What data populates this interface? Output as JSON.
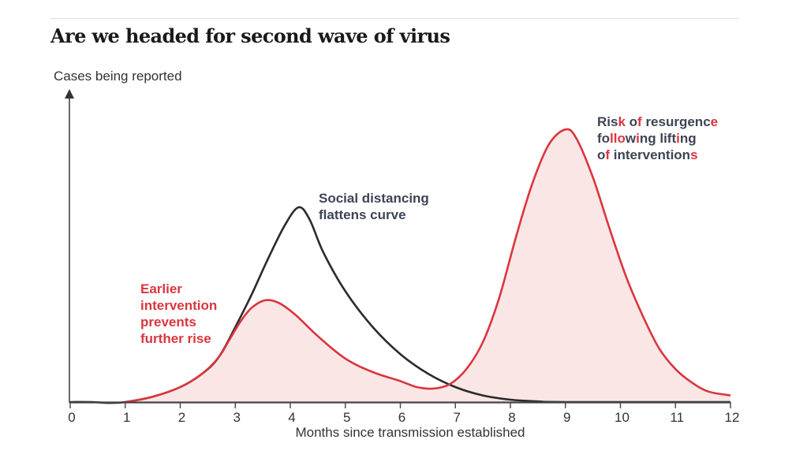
{
  "header": {
    "title": "Are we headed for second wave of virus"
  },
  "colors": {
    "black_curve": "#2b2b2b",
    "red_curve": "#d9363e",
    "red_fill": "#fbe6e6",
    "axis": "#444444",
    "annotation_dark": "#3d4455",
    "annotation_red": "#d9363e"
  },
  "chart_data": {
    "type": "line",
    "title": "Are we headed for second wave of virus",
    "xlabel": "Months since transmission established",
    "ylabel": "Cases being reported",
    "xlim": [
      0,
      12
    ],
    "ylim": [
      0,
      100
    ],
    "x_ticks": [
      0,
      1,
      2,
      3,
      4,
      5,
      6,
      7,
      8,
      9,
      10,
      11,
      12
    ],
    "x_tick_labels": [
      "0",
      "1",
      "2",
      "3",
      "4",
      "5",
      "6",
      "7",
      "8",
      "9",
      "10",
      "11",
      "12"
    ],
    "y_ticks_shown": false,
    "grid": false,
    "series": [
      {
        "name": "Social distancing flattens curve",
        "style": "black line, no fill",
        "points": [
          [
            0,
            0
          ],
          [
            0.4,
            0
          ],
          [
            0.7,
            -0.3
          ],
          [
            1.0,
            0
          ],
          [
            1.5,
            1.8
          ],
          [
            2.0,
            5
          ],
          [
            2.4,
            9.5
          ],
          [
            2.7,
            15
          ],
          [
            3.0,
            25
          ],
          [
            3.3,
            36
          ],
          [
            3.6,
            48
          ],
          [
            3.9,
            59
          ],
          [
            4.15,
            65
          ],
          [
            4.35,
            61
          ],
          [
            4.6,
            50
          ],
          [
            5.0,
            37
          ],
          [
            5.5,
            25
          ],
          [
            6.0,
            16
          ],
          [
            6.5,
            9.5
          ],
          [
            7.0,
            5
          ],
          [
            7.5,
            2.2
          ],
          [
            8.0,
            0.8
          ],
          [
            8.5,
            0.2
          ],
          [
            9.0,
            0
          ],
          [
            12,
            0
          ]
        ]
      },
      {
        "name": "Earlier intervention prevents further rise / Risk of resurgence following lifting of interventions",
        "style": "red line with light pink fill",
        "points": [
          [
            1.0,
            0
          ],
          [
            1.5,
            1.8
          ],
          [
            2.0,
            5
          ],
          [
            2.4,
            9.5
          ],
          [
            2.7,
            15
          ],
          [
            2.9,
            21
          ],
          [
            3.1,
            27
          ],
          [
            3.3,
            31.5
          ],
          [
            3.55,
            34
          ],
          [
            3.8,
            33
          ],
          [
            4.1,
            29
          ],
          [
            4.5,
            22
          ],
          [
            5.0,
            14.5
          ],
          [
            5.5,
            10
          ],
          [
            6.0,
            7
          ],
          [
            6.3,
            5
          ],
          [
            6.6,
            4.5
          ],
          [
            6.9,
            6
          ],
          [
            7.2,
            11
          ],
          [
            7.5,
            20
          ],
          [
            7.8,
            35
          ],
          [
            8.1,
            55
          ],
          [
            8.4,
            73
          ],
          [
            8.7,
            86
          ],
          [
            9.0,
            91
          ],
          [
            9.2,
            88
          ],
          [
            9.5,
            75
          ],
          [
            9.8,
            58
          ],
          [
            10.1,
            42
          ],
          [
            10.4,
            29
          ],
          [
            10.7,
            18
          ],
          [
            11.0,
            11
          ],
          [
            11.3,
            6.5
          ],
          [
            11.6,
            3.5
          ],
          [
            12.0,
            2.2
          ]
        ]
      }
    ],
    "annotations": [
      {
        "id": "social_distancing",
        "lines": [
          "Social distancing",
          "flattens curve"
        ],
        "color": "dark",
        "near": "black curve peak (~4 months)"
      },
      {
        "id": "earlier_intervention",
        "lines": [
          "Earlier",
          "intervention",
          "prevents",
          "further rise"
        ],
        "color": "red",
        "near": "first red peak (~3.5 months)"
      },
      {
        "id": "resurgence",
        "lines": [
          "Risk of resurgence",
          "following lifting",
          "of interventions"
        ],
        "color": "dark with red letter highlights",
        "highlighted_letters": {
          "line1": "Risk of resurgence — red: 'k', 'f', final 'e'",
          "line2": "following lifting — red: 'll' pair 'o', 'w'... partial red letters",
          "line3": "of interventions — red: 'f', final 's'"
        },
        "near": "second red peak (~9 months)"
      }
    ]
  },
  "annotation_text": {
    "social": {
      "line1": "Social distancing",
      "line2": "flattens curve"
    },
    "earlier": {
      "line1": "Earlier",
      "line2": "intervention",
      "line3": "prevents",
      "line4": "further rise"
    },
    "resurgence": {
      "line1": [
        {
          "t": "Ris",
          "red": false
        },
        {
          "t": "k",
          "red": true
        },
        {
          "t": " o",
          "red": false
        },
        {
          "t": "f",
          "red": true
        },
        {
          "t": " resurgenc",
          "red": false
        },
        {
          "t": "e",
          "red": true
        }
      ],
      "line2": [
        {
          "t": "fo",
          "red": false
        },
        {
          "t": "llo",
          "red": true
        },
        {
          "t": "w",
          "red": false
        },
        {
          "t": "i",
          "red": true
        },
        {
          "t": "ng lift",
          "red": false
        },
        {
          "t": "i",
          "red": true
        },
        {
          "t": "ng",
          "red": false
        }
      ],
      "line3": [
        {
          "t": "o",
          "red": false
        },
        {
          "t": "f",
          "red": true
        },
        {
          "t": " intervention",
          "red": false
        },
        {
          "t": "s",
          "red": true
        }
      ]
    }
  }
}
